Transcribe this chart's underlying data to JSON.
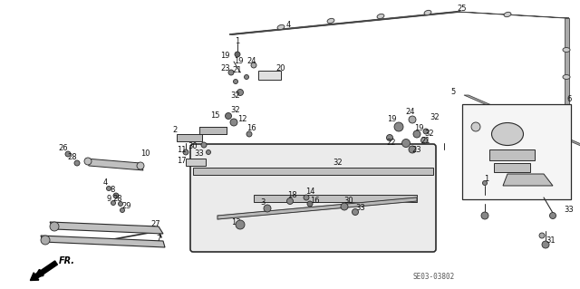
{
  "bg_color": "#ffffff",
  "diagram_code": "SE03-03802",
  "fig_width": 6.4,
  "fig_height": 3.19,
  "dpi": 100,
  "line_color": "#2a2a2a",
  "label_fontsize": 6.0,
  "label_color": "#111111"
}
